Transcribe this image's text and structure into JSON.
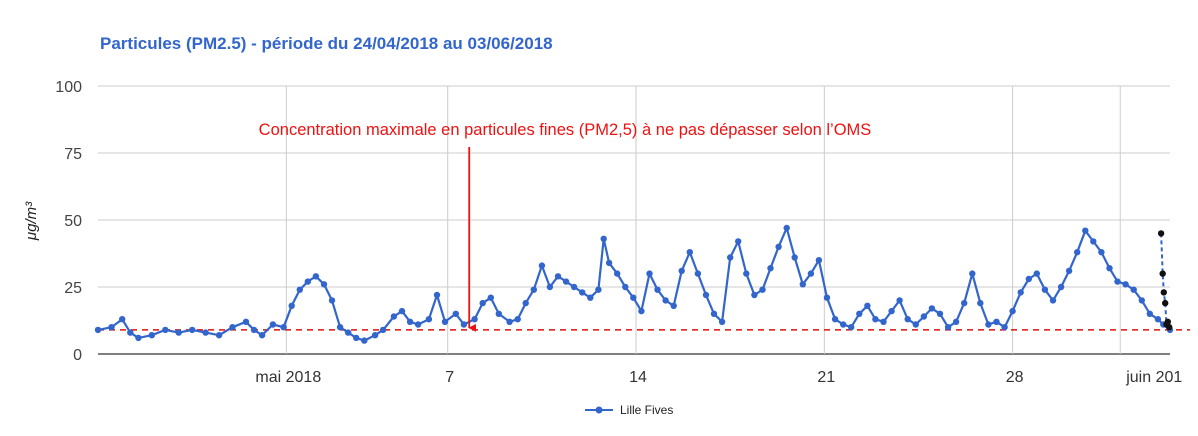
{
  "chart_data": {
    "type": "line",
    "title": "Particules (PM2.5) - période du 24/04/2018 au 03/06/2018",
    "ylabel": "μg/m³",
    "xlabel": "",
    "ylim": [
      0,
      100
    ],
    "xlim": [
      0,
      39.85
    ],
    "y_ticks": [
      "0",
      "25",
      "50",
      "75",
      "100"
    ],
    "x_ticks": [
      {
        "label": "mai 2018",
        "x": 7
      },
      {
        "label": "7",
        "x": 13
      },
      {
        "label": "14",
        "x": 20
      },
      {
        "label": "21",
        "x": 27
      },
      {
        "label": "28",
        "x": 34
      },
      {
        "label": "juin 201",
        "x": 38
      }
    ],
    "grid": true,
    "legend_position": "bottom",
    "series": [
      {
        "name": "Lille Fives",
        "color": "#3366cc",
        "points": [
          [
            0,
            9
          ],
          [
            0.5,
            10
          ],
          [
            0.9,
            13
          ],
          [
            1.2,
            8
          ],
          [
            1.5,
            6
          ],
          [
            2,
            7
          ],
          [
            2.5,
            9
          ],
          [
            3,
            8
          ],
          [
            3.5,
            9
          ],
          [
            4,
            8
          ],
          [
            4.5,
            7
          ],
          [
            5,
            10
          ],
          [
            5.5,
            12
          ],
          [
            5.8,
            9
          ],
          [
            6.1,
            7
          ],
          [
            6.5,
            11
          ],
          [
            6.9,
            10
          ],
          [
            7.2,
            18
          ],
          [
            7.5,
            24
          ],
          [
            7.8,
            27
          ],
          [
            8.1,
            29
          ],
          [
            8.4,
            26
          ],
          [
            8.7,
            20
          ],
          [
            9,
            10
          ],
          [
            9.3,
            8
          ],
          [
            9.6,
            6
          ],
          [
            9.9,
            5
          ],
          [
            10.3,
            7
          ],
          [
            10.6,
            9
          ],
          [
            11,
            14
          ],
          [
            11.3,
            16
          ],
          [
            11.6,
            12
          ],
          [
            11.9,
            11
          ],
          [
            12.3,
            13
          ],
          [
            12.6,
            22
          ],
          [
            12.9,
            12
          ],
          [
            13.3,
            15
          ],
          [
            13.6,
            11
          ],
          [
            14,
            13
          ],
          [
            14.3,
            19
          ],
          [
            14.6,
            21
          ],
          [
            14.9,
            15
          ],
          [
            15.3,
            12
          ],
          [
            15.6,
            13
          ],
          [
            15.9,
            19
          ],
          [
            16.2,
            24
          ],
          [
            16.5,
            33
          ],
          [
            16.8,
            25
          ],
          [
            17.1,
            29
          ],
          [
            17.4,
            27
          ],
          [
            17.7,
            25
          ],
          [
            18,
            23
          ],
          [
            18.3,
            21
          ],
          [
            18.6,
            24
          ],
          [
            18.8,
            43
          ],
          [
            19,
            34
          ],
          [
            19.3,
            30
          ],
          [
            19.6,
            25
          ],
          [
            19.9,
            21
          ],
          [
            20.2,
            16
          ],
          [
            20.5,
            30
          ],
          [
            20.8,
            24
          ],
          [
            21.1,
            20
          ],
          [
            21.4,
            18
          ],
          [
            21.7,
            31
          ],
          [
            22,
            38
          ],
          [
            22.3,
            30
          ],
          [
            22.6,
            22
          ],
          [
            22.9,
            15
          ],
          [
            23.2,
            12
          ],
          [
            23.5,
            36
          ],
          [
            23.8,
            42
          ],
          [
            24.1,
            30
          ],
          [
            24.4,
            22
          ],
          [
            24.7,
            24
          ],
          [
            25,
            32
          ],
          [
            25.3,
            40
          ],
          [
            25.6,
            47
          ],
          [
            25.9,
            36
          ],
          [
            26.2,
            26
          ],
          [
            26.5,
            30
          ],
          [
            26.8,
            35
          ],
          [
            27.1,
            21
          ],
          [
            27.4,
            13
          ],
          [
            27.7,
            11
          ],
          [
            28,
            10
          ],
          [
            28.3,
            15
          ],
          [
            28.6,
            18
          ],
          [
            28.9,
            13
          ],
          [
            29.2,
            12
          ],
          [
            29.5,
            16
          ],
          [
            29.8,
            20
          ],
          [
            30.1,
            13
          ],
          [
            30.4,
            11
          ],
          [
            30.7,
            14
          ],
          [
            31,
            17
          ],
          [
            31.3,
            15
          ],
          [
            31.6,
            10
          ],
          [
            31.9,
            12
          ],
          [
            32.2,
            19
          ],
          [
            32.5,
            30
          ],
          [
            32.8,
            19
          ],
          [
            33.1,
            11
          ],
          [
            33.4,
            12
          ],
          [
            33.7,
            10
          ],
          [
            34,
            16
          ],
          [
            34.3,
            23
          ],
          [
            34.6,
            28
          ],
          [
            34.9,
            30
          ],
          [
            35.2,
            24
          ],
          [
            35.5,
            20
          ],
          [
            35.8,
            25
          ],
          [
            36.1,
            31
          ],
          [
            36.4,
            38
          ],
          [
            36.7,
            46
          ],
          [
            37,
            42
          ],
          [
            37.3,
            38
          ],
          [
            37.6,
            32
          ],
          [
            37.9,
            27
          ],
          [
            38.2,
            26
          ],
          [
            38.5,
            24
          ],
          [
            38.8,
            20
          ],
          [
            39.1,
            15
          ],
          [
            39.4,
            13
          ],
          [
            39.6,
            11
          ],
          [
            39.85,
            9
          ]
        ],
        "tail_points": [
          [
            39.52,
            45
          ],
          [
            39.58,
            30
          ],
          [
            39.62,
            23
          ],
          [
            39.67,
            19
          ],
          [
            39.72,
            11
          ],
          [
            39.77,
            12
          ],
          [
            39.82,
            10
          ]
        ]
      }
    ],
    "reference_line": {
      "value": 9,
      "color": "#dd1111",
      "style": "dashed"
    },
    "annotation": {
      "text": "Concentration maximale en particules fines (PM2,5) à ne pas dépasser selon l’OMS",
      "arrow_from": [
        13.8,
        78
      ],
      "arrow_to": [
        13.8,
        9
      ],
      "color": "#ee1111"
    }
  }
}
